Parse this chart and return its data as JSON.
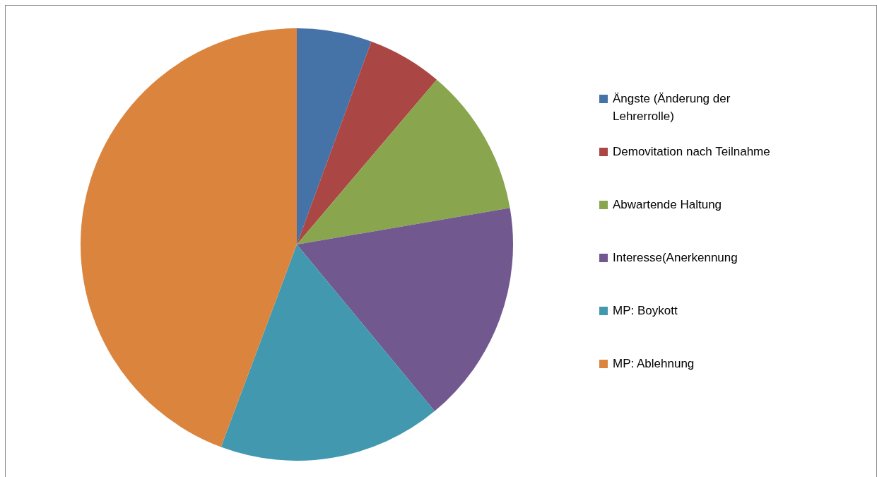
{
  "chart_data": {
    "type": "pie",
    "categories": [
      "Ängste (Änderung der Lehrerrolle)",
      "Demovitation nach Teilnahme",
      "Abwartende Haltung",
      "Interesse(Anerkennung",
      "MP: Boykott",
      "MP: Ablehnung"
    ],
    "values": [
      5.6,
      5.6,
      11.1,
      16.7,
      16.7,
      44.3
    ],
    "colors": [
      "#4572a7",
      "#aa4643",
      "#89a54e",
      "#71588f",
      "#4198af",
      "#db843d"
    ],
    "legend": "right"
  }
}
